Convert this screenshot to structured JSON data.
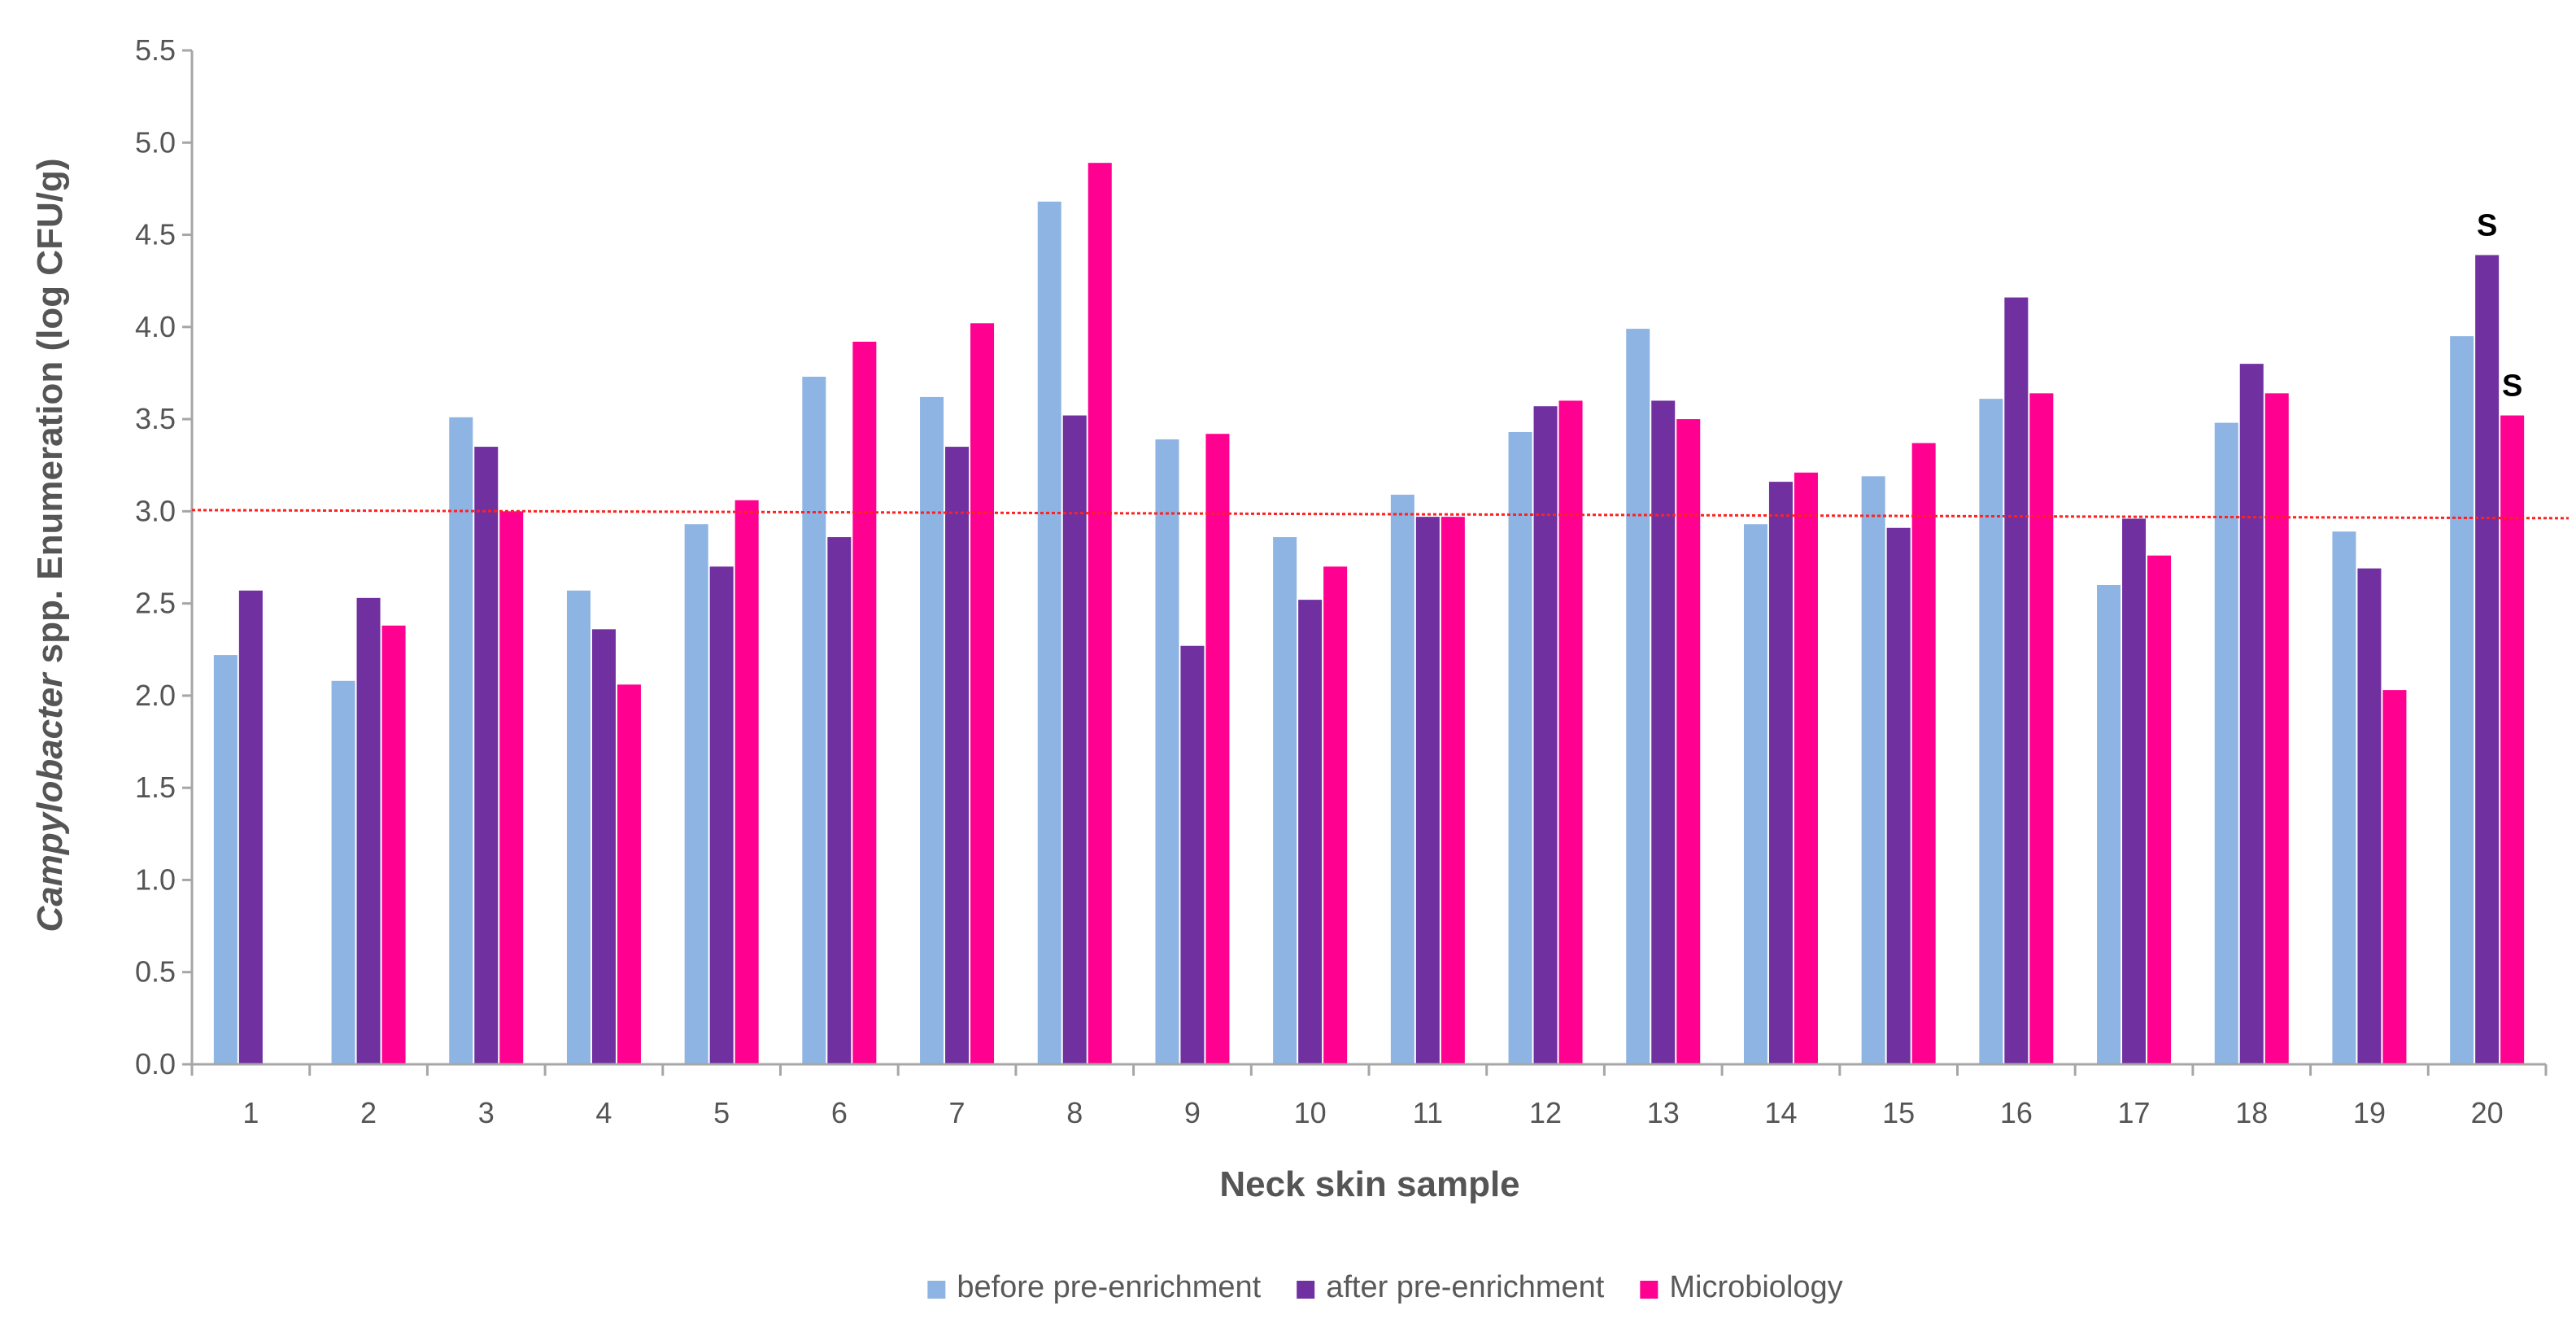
{
  "chart_data": {
    "type": "bar",
    "title": "",
    "xlabel": "Neck skin sample",
    "ylabel": {
      "italic_part": "Campylobacter",
      "rest": " spp. Enumeration (log CFU/g)"
    },
    "ylim": [
      0.0,
      5.5
    ],
    "yticks": [
      "0.0",
      "0.5",
      "1.0",
      "1.5",
      "2.0",
      "2.5",
      "3.0",
      "3.5",
      "4.0",
      "4.5",
      "5.0",
      "5.5"
    ],
    "categories": [
      "1",
      "2",
      "3",
      "4",
      "5",
      "6",
      "7",
      "8",
      "9",
      "10",
      "11",
      "12",
      "13",
      "14",
      "15",
      "16",
      "17",
      "18",
      "19",
      "20"
    ],
    "series": [
      {
        "name": "before pre-enrichment",
        "color": "#8DB4E2",
        "values": [
          2.22,
          2.08,
          3.51,
          2.57,
          2.93,
          3.73,
          3.62,
          4.68,
          3.39,
          2.86,
          3.09,
          3.43,
          3.99,
          2.93,
          3.19,
          3.61,
          2.6,
          3.48,
          2.89,
          3.95
        ]
      },
      {
        "name": "after pre-enrichment",
        "color": "#7030A0",
        "values": [
          2.57,
          2.53,
          3.35,
          2.36,
          2.7,
          2.86,
          3.35,
          3.52,
          2.27,
          2.52,
          2.97,
          3.57,
          3.6,
          3.16,
          2.91,
          4.16,
          2.96,
          3.8,
          2.69,
          4.39
        ]
      },
      {
        "name": "Microbiology",
        "color": "#FF0090",
        "values": [
          null,
          2.38,
          3.0,
          2.06,
          3.06,
          3.92,
          4.02,
          4.89,
          3.42,
          2.7,
          2.97,
          3.6,
          3.5,
          3.21,
          3.37,
          3.64,
          2.76,
          3.64,
          2.03,
          3.52
        ]
      }
    ],
    "threshold": {
      "value": 2.98,
      "color": "#FF2020",
      "style": "dotted"
    },
    "annotations": [
      {
        "category": "20",
        "series": "after pre-enrichment",
        "text": "S"
      },
      {
        "category": "20",
        "series": "Microbiology",
        "text": "S"
      }
    ],
    "legend_position": "bottom-center",
    "grid": false
  }
}
